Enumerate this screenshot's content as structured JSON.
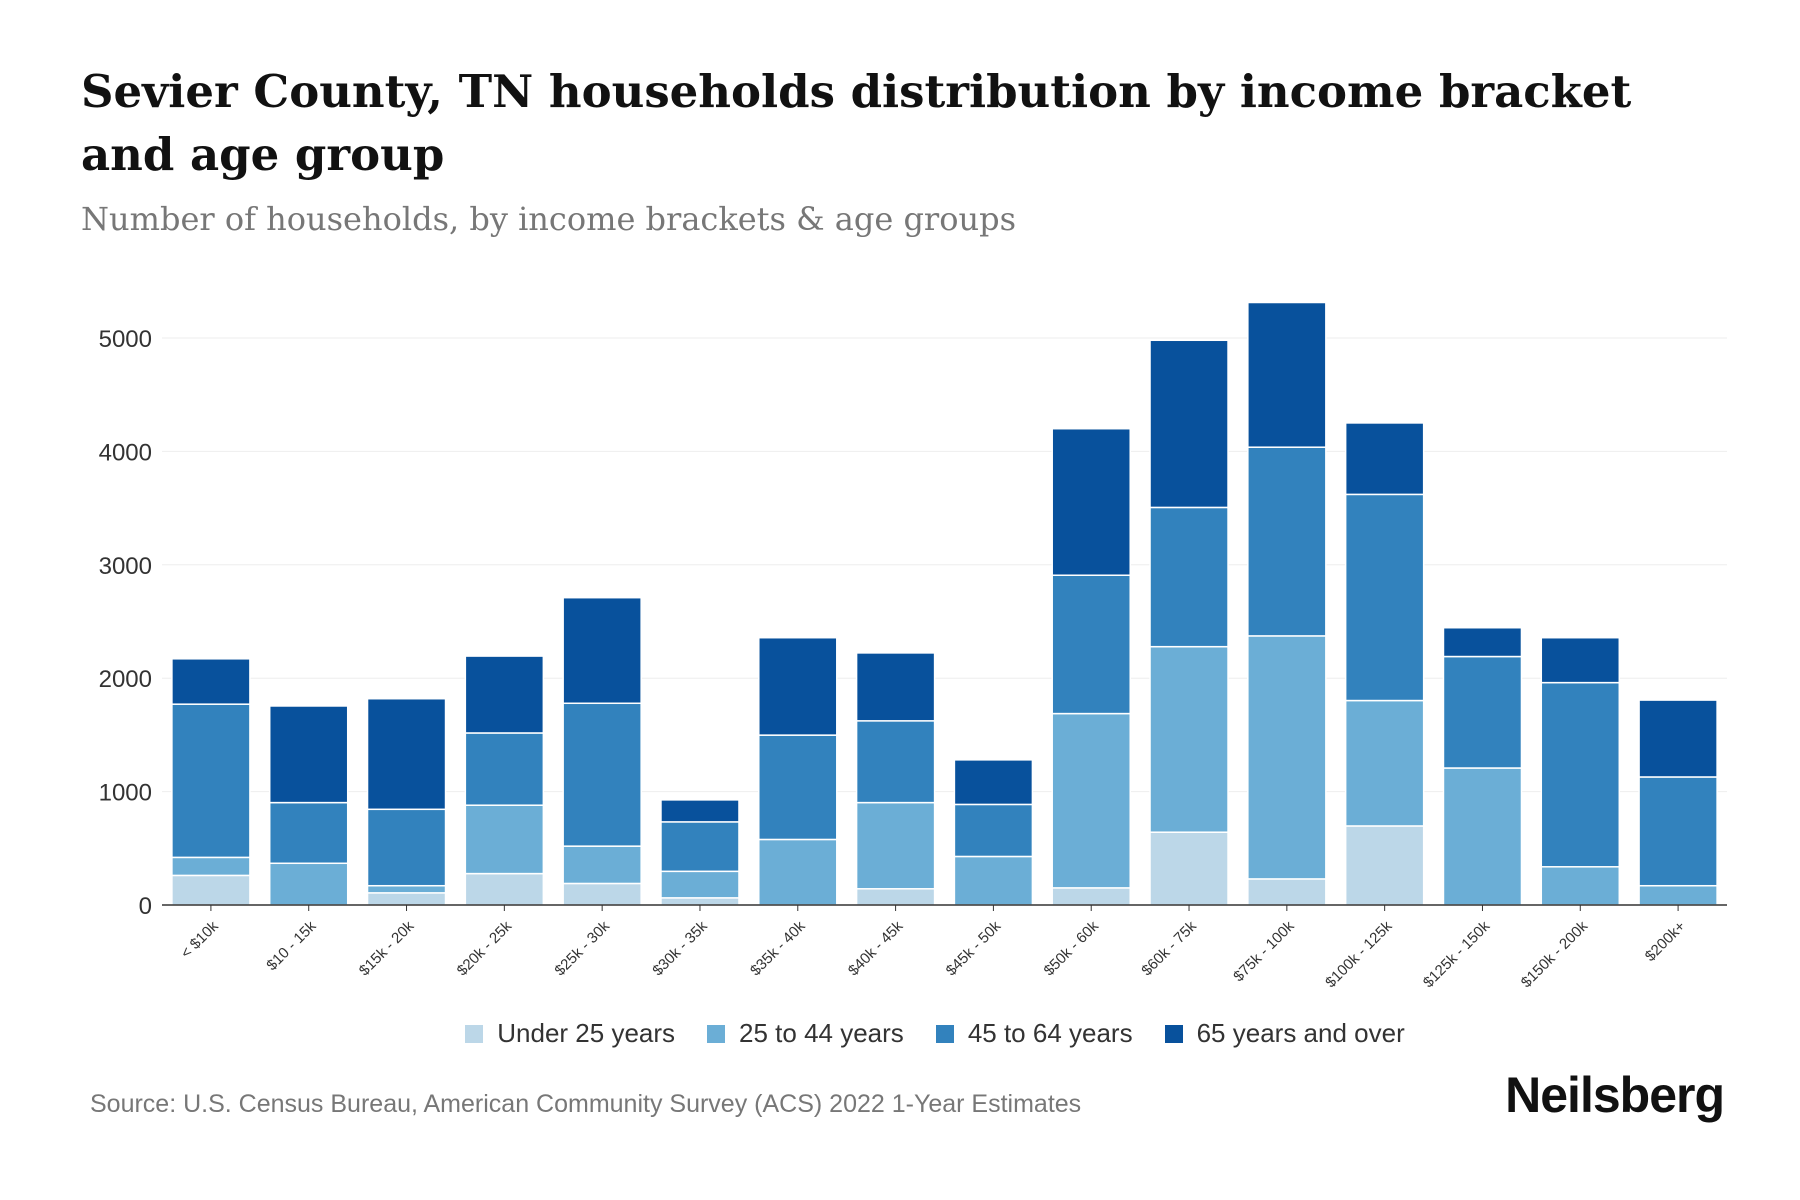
{
  "title": "Sevier County, TN households distribution by income bracket and age group",
  "subtitle": "Number of households, by income brackets & age groups",
  "source": "Source: U.S. Census Bureau, American Community Survey (ACS) 2022 1-Year Estimates",
  "logo": "Neilsberg",
  "chart_data": {
    "type": "bar",
    "stacked": true,
    "title": "Sevier County, TN households distribution by income bracket and age group",
    "xlabel": "",
    "ylabel": "",
    "ylim": [
      0,
      5500
    ],
    "yticks": [
      0,
      1000,
      2000,
      3000,
      4000,
      5000
    ],
    "grid": true,
    "legend_position": "bottom",
    "categories": [
      "< $10k",
      "$10 - 15k",
      "$15k - 20k",
      "$20k - 25k",
      "$25k - 30k",
      "$30k - 35k",
      "$35k - 40k",
      "$40k - 45k",
      "$45k - 50k",
      "$50k - 60k",
      "$60k - 75k",
      "$75k - 100k",
      "$100k - 125k",
      "$125k - 150k",
      "$150k - 200k",
      "$200k+"
    ],
    "series": [
      {
        "name": "Under 25 years",
        "color": "#bcd7e8",
        "values": [
          261,
          0,
          107,
          277,
          190,
          63,
          0,
          143,
          0,
          151,
          642,
          230,
          697,
          0,
          0,
          0
        ]
      },
      {
        "name": "25 to 44 years",
        "color": "#6baed6",
        "values": [
          159,
          368,
          63,
          603,
          329,
          234,
          578,
          760,
          428,
          1537,
          1636,
          2143,
          1106,
          1208,
          337,
          170
        ]
      },
      {
        "name": "45 to 64 years",
        "color": "#3282bd",
        "values": [
          1351,
          535,
          674,
          637,
          1260,
          436,
          920,
          721,
          459,
          1220,
          1228,
          1664,
          1818,
          983,
          1624,
          959
        ]
      },
      {
        "name": "65 years and over",
        "color": "#08519c",
        "values": [
          400,
          852,
          975,
          678,
          931,
          194,
          859,
          599,
          393,
          1292,
          1474,
          1276,
          630,
          254,
          396,
          678
        ]
      }
    ]
  }
}
